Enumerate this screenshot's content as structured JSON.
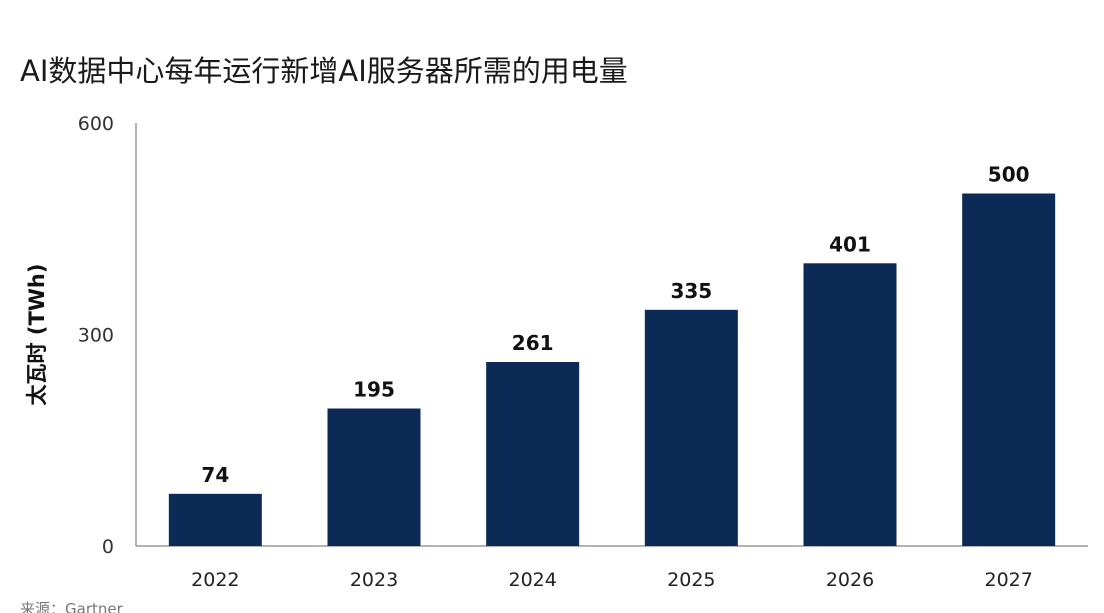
{
  "chart_data": {
    "type": "bar",
    "title": "AI数据中心每年运行新增AI服务器所需的用电量",
    "xlabel": "",
    "ylabel": "太瓦时 (TWh)",
    "categories": [
      "2022",
      "2023",
      "2024",
      "2025",
      "2026",
      "2027"
    ],
    "values": [
      74,
      195,
      261,
      335,
      401,
      500
    ],
    "data_labels": [
      "74",
      "195",
      "261",
      "335",
      "401",
      "500"
    ],
    "ylim": [
      0,
      600
    ],
    "yticks": [
      0,
      300,
      600
    ],
    "ytick_labels": [
      "0",
      "300",
      "600"
    ],
    "grid": false,
    "legend": "none",
    "bar_color": "#0b2a55"
  },
  "source": "来源：Gartner"
}
